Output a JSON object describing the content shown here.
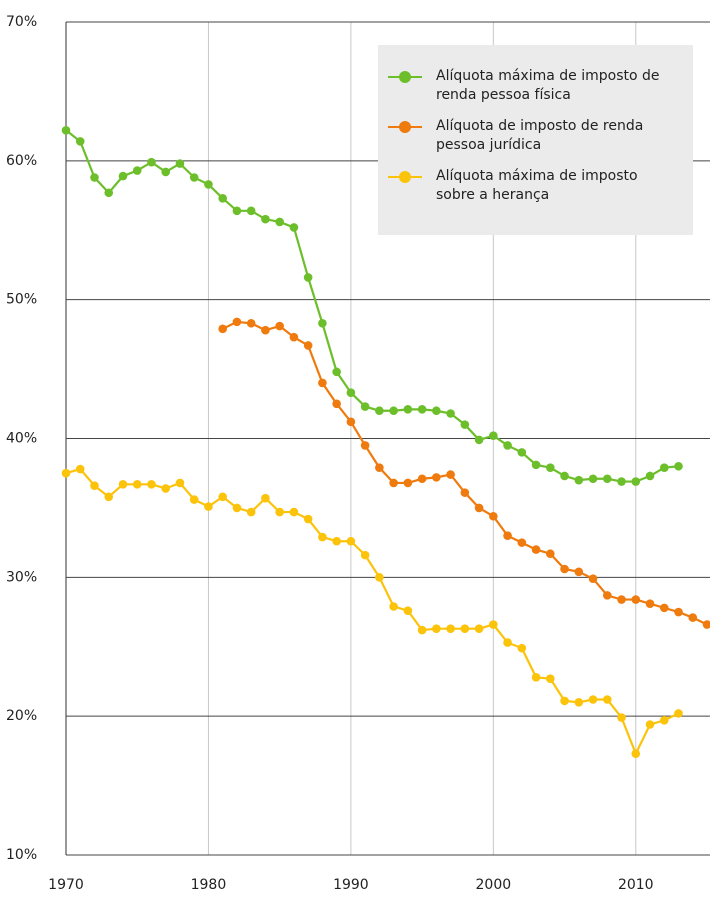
{
  "chart_data": {
    "type": "line",
    "x": [
      1970,
      1971,
      1972,
      1973,
      1974,
      1975,
      1976,
      1977,
      1978,
      1979,
      1980,
      1981,
      1982,
      1983,
      1984,
      1985,
      1986,
      1987,
      1988,
      1989,
      1990,
      1991,
      1992,
      1993,
      1994,
      1995,
      1996,
      1997,
      1998,
      1999,
      2000,
      2001,
      2002,
      2003,
      2004,
      2005,
      2006,
      2007,
      2008,
      2009,
      2010,
      2011,
      2012,
      2013,
      2014,
      2015
    ],
    "series": [
      {
        "name": "Alíquota máxima de imposto de renda pessoa física",
        "color": "#6cbf2a",
        "values": [
          62.2,
          61.4,
          58.8,
          57.7,
          58.9,
          59.3,
          59.9,
          59.2,
          59.8,
          58.8,
          58.3,
          57.3,
          56.4,
          56.4,
          55.8,
          55.6,
          55.2,
          51.6,
          48.3,
          44.8,
          43.3,
          42.3,
          42.0,
          42.0,
          42.1,
          42.1,
          42.0,
          41.8,
          41.0,
          39.9,
          40.2,
          39.5,
          39.0,
          38.1,
          37.9,
          37.3,
          37.0,
          37.1,
          37.1,
          36.9,
          36.9,
          37.3,
          37.9,
          38.0,
          null,
          null
        ]
      },
      {
        "name": "Alíquota de imposto de renda pessoa jurídica",
        "color": "#ef7a0d",
        "values": [
          null,
          null,
          null,
          null,
          null,
          null,
          null,
          null,
          null,
          null,
          null,
          47.9,
          48.4,
          48.3,
          47.8,
          48.1,
          47.3,
          46.7,
          44.0,
          42.5,
          41.2,
          39.5,
          37.9,
          36.8,
          36.8,
          37.1,
          37.2,
          37.4,
          36.1,
          35.0,
          34.4,
          33.0,
          32.5,
          32.0,
          31.7,
          30.6,
          30.4,
          29.9,
          28.7,
          28.4,
          28.4,
          28.1,
          27.8,
          27.5,
          27.1,
          26.6
        ]
      },
      {
        "name": "Alíquota máxima de imposto sobre a herança",
        "color": "#fcc30b",
        "values": [
          37.5,
          37.8,
          36.6,
          35.8,
          36.7,
          36.7,
          36.7,
          36.4,
          36.8,
          35.6,
          35.1,
          35.8,
          35.0,
          34.7,
          35.7,
          34.7,
          34.7,
          34.2,
          32.9,
          32.6,
          32.6,
          31.6,
          30.0,
          27.9,
          27.6,
          26.2,
          26.3,
          26.3,
          26.3,
          26.3,
          26.6,
          25.3,
          24.9,
          22.8,
          22.7,
          21.1,
          21.0,
          21.2,
          21.2,
          19.9,
          17.3,
          19.4,
          19.7,
          20.2,
          null,
          null
        ]
      }
    ],
    "xlim": [
      1970,
      2015
    ],
    "xticks": [
      1970,
      1980,
      1990,
      2000,
      2010
    ],
    "ylim": [
      10,
      70
    ],
    "yticks": [
      {
        "value": 10,
        "label": "10%"
      },
      {
        "value": 20,
        "label": "20%"
      },
      {
        "value": 30,
        "label": "30%"
      },
      {
        "value": 40,
        "label": "40%"
      },
      {
        "value": 50,
        "label": "50%"
      },
      {
        "value": 60,
        "label": "60%"
      },
      {
        "value": 70,
        "label": "70%"
      }
    ],
    "grid": true,
    "legend": "upper right"
  }
}
